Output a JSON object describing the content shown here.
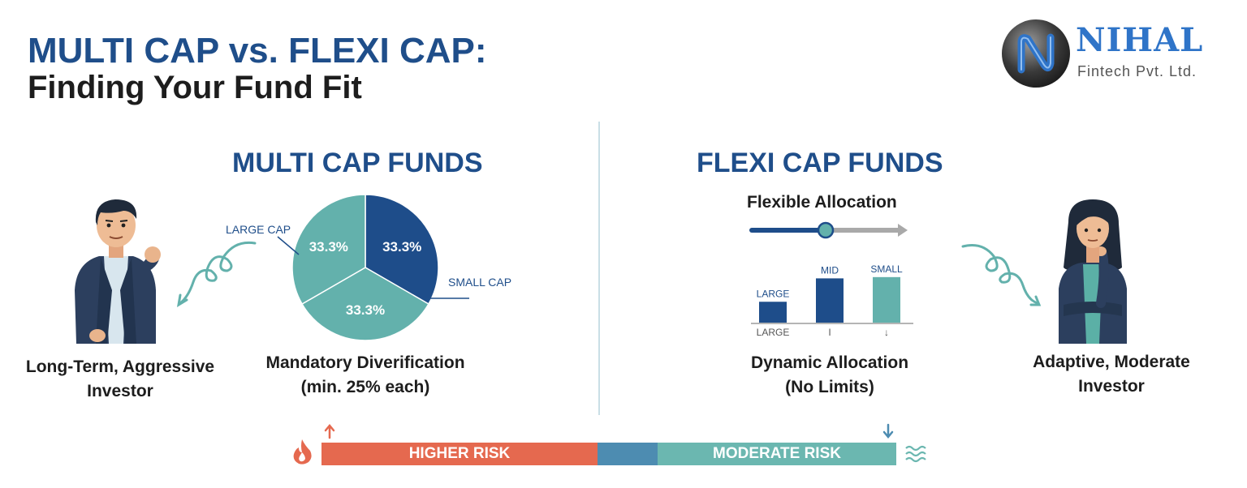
{
  "header": {
    "title_line1": "MULTI CAP vs. FLEXI CAP:",
    "title_line2": "Finding Your Fund Fit"
  },
  "logo": {
    "name": "NIHAL",
    "subtitle": "Fintech Pvt. Ltd.",
    "icon": "nihal-emblem-icon"
  },
  "multi_cap": {
    "title": "MULTI CAP FUNDS",
    "investor_label": "Long-Term, Aggressive Investor",
    "investor_line1": "Long-Term, Aggressive",
    "investor_line2": "Investor",
    "caption_line1": "Mandatory Diverification",
    "caption_line2": "(min. 25% each)",
    "label_large": "LARGE CAP",
    "label_small": "SMALL CAP",
    "slices": [
      {
        "label": "33.3%",
        "color": "#1e4d8a"
      },
      {
        "label": "33.3%",
        "color": "#63b1ac"
      },
      {
        "label": "33.3%",
        "color": "#63b1ac"
      }
    ]
  },
  "flexi_cap": {
    "title": "FLEXI CAP FUNDS",
    "slider_label": "Flexible Allocation",
    "slider_level": 0.5,
    "caption_line1": "Dynamic Allocation",
    "caption_line2": "(No Limits)",
    "investor_line1": "Adaptive, Moderate",
    "investor_line2": "Investor"
  },
  "chart_data": [
    {
      "type": "pie",
      "title": "",
      "categories": [
        "",
        "",
        ""
      ],
      "values": [
        33.3,
        33.3,
        33.3
      ],
      "data_labels": [
        "33.3%",
        "33.3%",
        "33.3%"
      ],
      "annotations": [
        "LARGE CAP",
        "SMALL CAP"
      ]
    },
    {
      "type": "bar",
      "title": "",
      "categories": [
        "LARGE",
        "MID",
        "SMALL"
      ],
      "values": [
        33,
        70,
        72
      ],
      "colors": [
        "#1e4d8a",
        "#1e4d8a",
        "#63b1ac"
      ],
      "tick_labels": [
        "LARGE",
        "I",
        "↓"
      ],
      "ylim": [
        0,
        100
      ]
    }
  ],
  "risk": {
    "higher": "HIGHER RISK",
    "moderate": "MODERATE RISK",
    "colors": {
      "higher": "#e5694f",
      "middle": "#4d8cb1",
      "moderate": "#6bb7b0"
    },
    "segments": [
      0.48,
      0.105,
      0.415
    ]
  },
  "colors": {
    "brand_blue": "#1f4e8a",
    "teal": "#63b1ac",
    "text_dark": "#1d1d1d"
  }
}
